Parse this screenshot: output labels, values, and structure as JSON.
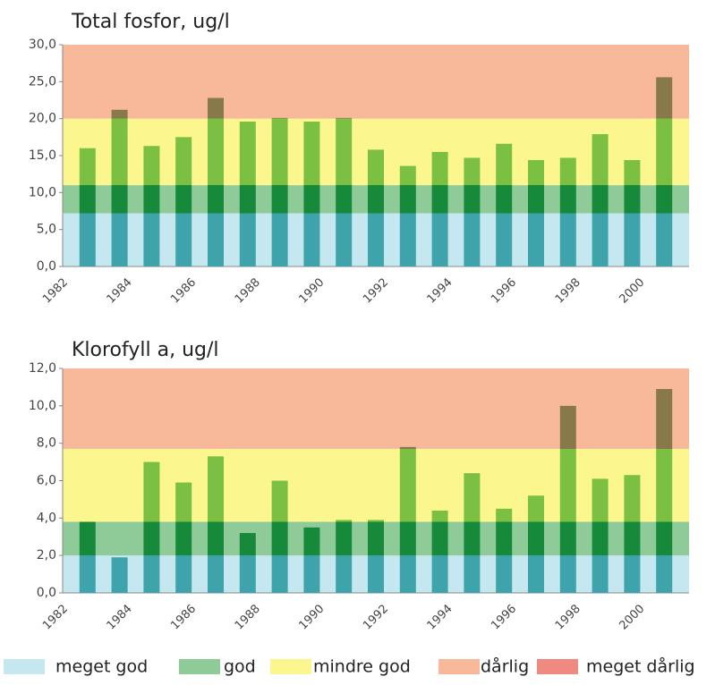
{
  "charts": [
    {
      "chart_data": {
        "type": "bar",
        "title": "Total fosfor, ug/l",
        "categories": [
          "1982",
          null,
          "1984",
          null,
          "1986",
          null,
          "1988",
          null,
          "1990",
          null,
          "1992",
          null,
          "1994",
          null,
          "1996",
          null,
          "1998",
          null,
          "2000",
          null
        ],
        "values": [
          null,
          16.0,
          21.2,
          16.3,
          17.5,
          22.8,
          19.6,
          20.1,
          19.6,
          20.1,
          15.8,
          13.6,
          15.5,
          14.7,
          16.6,
          14.4,
          14.7,
          17.9,
          14.4,
          25.6
        ],
        "ylim": [
          0,
          30
        ],
        "yticks": [
          {
            "value": 0,
            "label": "0,0"
          },
          {
            "value": 5,
            "label": "5,0"
          },
          {
            "value": 10,
            "label": "10,0"
          },
          {
            "value": 15,
            "label": "15,0"
          },
          {
            "value": 20,
            "label": "20,0"
          },
          {
            "value": 25,
            "label": "25,0"
          },
          {
            "value": 30,
            "label": "30,0"
          }
        ],
        "bands": [
          {
            "from": 0,
            "to": 7.2,
            "color": "#c4e7f0",
            "bar_color": "#3ea3aa"
          },
          {
            "from": 7.2,
            "to": 11,
            "color": "#8fcb99",
            "bar_color": "#17893b"
          },
          {
            "from": 11,
            "to": 20,
            "color": "#fbf68e",
            "bar_color": "#7cc043"
          },
          {
            "from": 20,
            "to": 30,
            "color": "#f8b99b",
            "bar_color": "#87794a"
          }
        ]
      }
    },
    {
      "chart_data": {
        "type": "bar",
        "title": "Klorofyll a, ug/l",
        "categories": [
          "1982",
          null,
          "1984",
          null,
          "1986",
          null,
          "1988",
          null,
          "1990",
          null,
          "1992",
          null,
          "1994",
          null,
          "1996",
          null,
          "1998",
          null,
          "2000",
          null
        ],
        "values": [
          null,
          3.8,
          1.9,
          7.0,
          5.9,
          7.3,
          3.2,
          6.0,
          3.5,
          3.9,
          3.9,
          7.8,
          4.4,
          6.4,
          4.5,
          5.2,
          10.0,
          6.1,
          6.3,
          10.9
        ],
        "ylim": [
          0,
          12
        ],
        "yticks": [
          {
            "value": 0,
            "label": "0,0"
          },
          {
            "value": 2,
            "label": "2,0"
          },
          {
            "value": 4,
            "label": "4,0"
          },
          {
            "value": 6,
            "label": "6,0"
          },
          {
            "value": 8,
            "label": "8,0"
          },
          {
            "value": 10,
            "label": "10,0"
          },
          {
            "value": 12,
            "label": "12,0"
          }
        ],
        "bands": [
          {
            "from": 0,
            "to": 2,
            "color": "#c4e7f0",
            "bar_color": "#3ea3aa"
          },
          {
            "from": 2,
            "to": 3.8,
            "color": "#8fcb99",
            "bar_color": "#17893b"
          },
          {
            "from": 3.8,
            "to": 7.7,
            "color": "#fbf68e",
            "bar_color": "#7cc043"
          },
          {
            "from": 7.7,
            "to": 12,
            "color": "#f8b99b",
            "bar_color": "#87794a"
          }
        ]
      }
    }
  ],
  "legend": [
    {
      "name": "meget god",
      "color": "#c4e7f0"
    },
    {
      "name": "god",
      "color": "#8fcb99"
    },
    {
      "name": "mindre god",
      "color": "#fbf68e"
    },
    {
      "name": "dårlig",
      "color": "#f8b99b"
    },
    {
      "name": "meget dårlig",
      "color": "#ef8a80"
    }
  ]
}
